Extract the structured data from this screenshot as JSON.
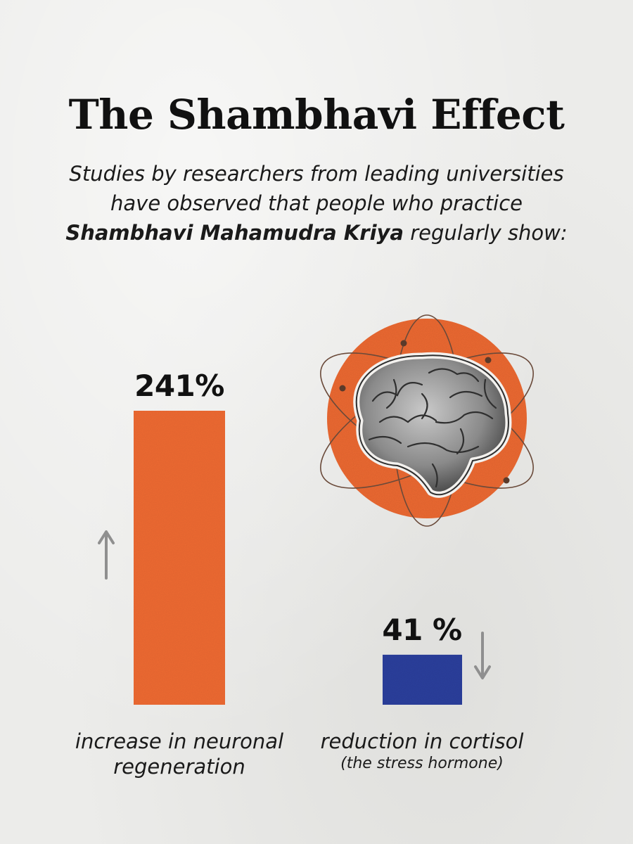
{
  "header": {
    "title": "The Shambhavi Effect",
    "subtitle_before": "Studies by researchers from leading universities have observed that people who practice ",
    "subtitle_bold": "Shambhavi Mahamudra Kriya",
    "subtitle_after": " regularly show:"
  },
  "colors": {
    "increase_bar": "#ee6a32",
    "reduction_bar": "#2b3f9c",
    "arrow": "#8f8f8f",
    "brain_circle": "#ee6a32"
  },
  "icons": [
    "up-arrow-icon",
    "down-arrow-icon",
    "brain-icon"
  ],
  "chart_data": {
    "type": "bar",
    "categories": [
      "increase in neuronal regeneration",
      "reduction in cortisol"
    ],
    "values": [
      241,
      41
    ],
    "value_labels": [
      "241%",
      "41 %"
    ],
    "label_lines": [
      [
        "increase in neuronal",
        "regeneration"
      ],
      [
        "reduction in cortisol"
      ]
    ],
    "label_note": "(the stress hormone)",
    "directions": [
      "up",
      "down"
    ],
    "title": "",
    "xlabel": "",
    "ylabel": "",
    "grid": false
  }
}
